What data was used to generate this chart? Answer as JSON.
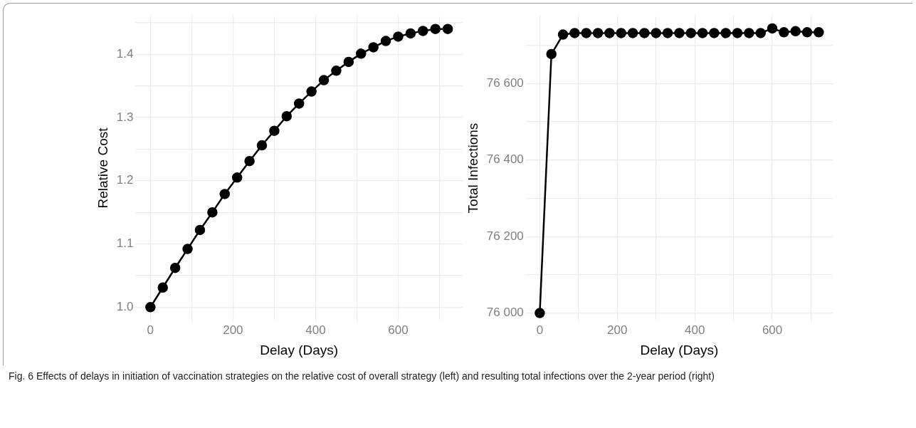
{
  "chart_data": [
    {
      "type": "line",
      "xlabel": "Delay (Days)",
      "ylabel": "Relative Cost",
      "marker": "circle",
      "line_style": "solid",
      "grid": true,
      "legend": false,
      "x": [
        0,
        30,
        60,
        90,
        120,
        150,
        180,
        210,
        240,
        270,
        300,
        330,
        360,
        390,
        420,
        450,
        480,
        510,
        540,
        570,
        600,
        630,
        660,
        690,
        720
      ],
      "series": [
        {
          "color": "#000000",
          "values": [
            1.0,
            1.031,
            1.062,
            1.092,
            1.122,
            1.15,
            1.179,
            1.205,
            1.231,
            1.256,
            1.279,
            1.302,
            1.322,
            1.341,
            1.359,
            1.374,
            1.388,
            1.401,
            1.411,
            1.421,
            1.428,
            1.433,
            1.437,
            1.44,
            1.44
          ]
        }
      ],
      "xlim": [
        -36,
        756
      ],
      "xticks": [
        0,
        {
          "value": 100,
          "label": null
        },
        200,
        {
          "value": 300,
          "label": null
        },
        400,
        {
          "value": 500,
          "label": null
        },
        600,
        {
          "value": 700,
          "label": null
        }
      ],
      "ylim": [
        0.978,
        1.462
      ],
      "yticks": [
        {
          "value": 1.0,
          "label": "1.0"
        },
        {
          "value": 1.05,
          "label": null
        },
        1.1,
        {
          "value": 1.15,
          "label": null
        },
        1.2,
        {
          "value": 1.25,
          "label": null
        },
        1.3,
        {
          "value": 1.35,
          "label": null
        },
        1.4,
        {
          "value": 1.45,
          "label": null
        }
      ],
      "annotations": [
        "Fig. 6  Effects of delays in initiation of vaccination strategies on the relative cost of overall strategy (left) and resulting total infections over the 2-year period (right)"
      ]
    },
    {
      "type": "line",
      "xlabel": "Delay (Days)",
      "ylabel": "Total Infections",
      "marker": "circle",
      "line_style": "solid",
      "grid": true,
      "legend": false,
      "x": [
        0,
        30,
        60,
        90,
        120,
        150,
        180,
        210,
        240,
        270,
        300,
        330,
        360,
        390,
        420,
        450,
        480,
        510,
        540,
        570,
        600,
        630,
        660,
        690,
        720
      ],
      "series": [
        {
          "color": "#000000",
          "values": [
            76000,
            76677,
            76728,
            76732,
            76732,
            76732,
            76732,
            76732,
            76732,
            76732,
            76732,
            76732,
            76732,
            76732,
            76732,
            76732,
            76732,
            76732,
            76732,
            76732,
            76744,
            76734,
            76737,
            76734,
            76734
          ]
        }
      ],
      "xlim": [
        -36,
        756
      ],
      "xticks": [
        0,
        {
          "value": 100,
          "label": null
        },
        200,
        {
          "value": 300,
          "label": null
        },
        400,
        {
          "value": 500,
          "label": null
        },
        600,
        {
          "value": 700,
          "label": null
        }
      ],
      "ylim": [
        75979,
        76779
      ],
      "yticks": [
        {
          "value": 76000,
          "label": "76 000"
        },
        {
          "value": 76100,
          "label": null
        },
        {
          "value": 76200,
          "label": "76 200"
        },
        {
          "value": 76300,
          "label": null
        },
        {
          "value": 76400,
          "label": "76 400"
        },
        {
          "value": 76500,
          "label": null
        },
        {
          "value": 76600,
          "label": "76 600"
        },
        {
          "value": 76700,
          "label": null
        }
      ]
    }
  ]
}
